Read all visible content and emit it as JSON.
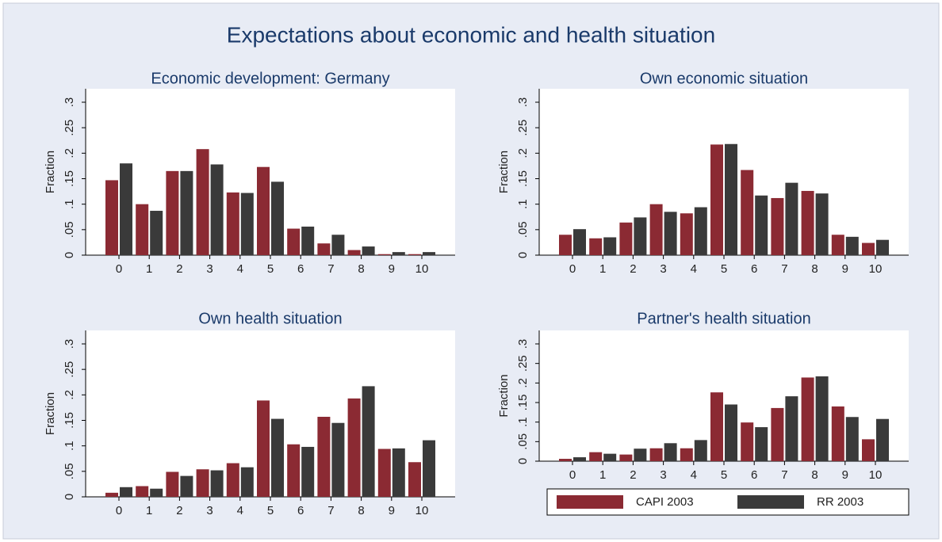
{
  "title": "Expectations about economic and health situation",
  "chart_data": [
    {
      "type": "bar",
      "title": "Economic development: Germany",
      "ylabel": "Fraction",
      "categories": [
        "0",
        "1",
        "2",
        "3",
        "4",
        "5",
        "6",
        "7",
        "8",
        "9",
        "10"
      ],
      "series": [
        {
          "name": "CAPI 2003",
          "color": "#8b2a33",
          "values": [
            0.147,
            0.1,
            0.165,
            0.208,
            0.123,
            0.173,
            0.052,
            0.023,
            0.01,
            0.002,
            0.002
          ]
        },
        {
          "name": "RR 2003",
          "color": "#3a3a3a",
          "values": [
            0.18,
            0.087,
            0.165,
            0.178,
            0.122,
            0.144,
            0.056,
            0.04,
            0.017,
            0.006,
            0.006
          ]
        }
      ],
      "ylim": [
        0,
        0.3
      ],
      "yticks": [
        0,
        {
          "value": 0.05,
          "label": ".05"
        },
        {
          "value": 0.1,
          "label": ".1"
        },
        {
          "value": 0.15,
          "label": ".15"
        },
        {
          "value": 0.2,
          "label": ".2"
        },
        {
          "value": 0.25,
          "label": ".25"
        },
        {
          "value": 0.3,
          "label": ".3"
        }
      ]
    },
    {
      "type": "bar",
      "title": "Own economic situation",
      "ylabel": "Fraction",
      "categories": [
        "0",
        "1",
        "2",
        "3",
        "4",
        "5",
        "6",
        "7",
        "8",
        "9",
        "10"
      ],
      "series": [
        {
          "name": "CAPI 2003",
          "color": "#8b2a33",
          "values": [
            0.04,
            0.033,
            0.064,
            0.1,
            0.082,
            0.217,
            0.167,
            0.112,
            0.126,
            0.04,
            0.024
          ]
        },
        {
          "name": "RR 2003",
          "color": "#3a3a3a",
          "values": [
            0.051,
            0.035,
            0.074,
            0.085,
            0.094,
            0.218,
            0.117,
            0.142,
            0.121,
            0.036,
            0.03
          ]
        }
      ],
      "ylim": [
        0,
        0.3
      ],
      "yticks": [
        0,
        {
          "value": 0.05,
          "label": ".05"
        },
        {
          "value": 0.1,
          "label": ".1"
        },
        {
          "value": 0.15,
          "label": ".15"
        },
        {
          "value": 0.2,
          "label": ".2"
        },
        {
          "value": 0.25,
          "label": ".25"
        },
        {
          "value": 0.3,
          "label": ".3"
        }
      ]
    },
    {
      "type": "bar",
      "title": "Own health situation",
      "ylabel": "Fraction",
      "categories": [
        "0",
        "1",
        "2",
        "3",
        "4",
        "5",
        "6",
        "7",
        "8",
        "9",
        "10"
      ],
      "series": [
        {
          "name": "CAPI 2003",
          "color": "#8b2a33",
          "values": [
            0.008,
            0.021,
            0.049,
            0.054,
            0.066,
            0.189,
            0.103,
            0.157,
            0.193,
            0.094,
            0.068
          ]
        },
        {
          "name": "RR 2003",
          "color": "#3a3a3a",
          "values": [
            0.019,
            0.016,
            0.041,
            0.052,
            0.058,
            0.153,
            0.098,
            0.145,
            0.217,
            0.095,
            0.111
          ]
        }
      ],
      "ylim": [
        0,
        0.3
      ],
      "yticks": [
        0,
        {
          "value": 0.05,
          "label": ".05"
        },
        {
          "value": 0.1,
          "label": ".1"
        },
        {
          "value": 0.15,
          "label": ".15"
        },
        {
          "value": 0.2,
          "label": ".2"
        },
        {
          "value": 0.25,
          "label": ".25"
        },
        {
          "value": 0.3,
          "label": ".3"
        }
      ]
    },
    {
      "type": "bar",
      "title": "Partner's health situation",
      "ylabel": "Fraction",
      "categories": [
        "0",
        "1",
        "2",
        "3",
        "4",
        "5",
        "6",
        "7",
        "8",
        "9",
        "10"
      ],
      "series": [
        {
          "name": "CAPI 2003",
          "color": "#8b2a33",
          "values": [
            0.006,
            0.023,
            0.017,
            0.033,
            0.033,
            0.176,
            0.099,
            0.136,
            0.214,
            0.14,
            0.056
          ]
        },
        {
          "name": "RR 2003",
          "color": "#3a3a3a",
          "values": [
            0.01,
            0.019,
            0.032,
            0.046,
            0.054,
            0.145,
            0.087,
            0.166,
            0.217,
            0.113,
            0.108
          ]
        }
      ],
      "ylim": [
        0,
        0.3
      ],
      "yticks": [
        0,
        {
          "value": 0.05,
          "label": ".05"
        },
        {
          "value": 0.1,
          "label": ".1"
        },
        {
          "value": 0.15,
          "label": ".15"
        },
        {
          "value": 0.2,
          "label": ".2"
        },
        {
          "value": 0.25,
          "label": ".25"
        },
        {
          "value": 0.3,
          "label": ".3"
        }
      ],
      "legend": "bottom"
    }
  ]
}
